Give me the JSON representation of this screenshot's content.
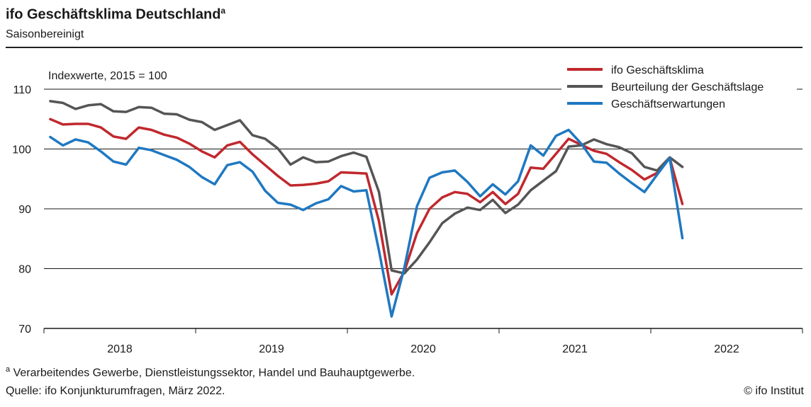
{
  "header": {
    "title": "ifo Geschäftsklima Deutschland",
    "title_superscript": "a",
    "subtitle": "Saisonbereinigt"
  },
  "footer": {
    "footnote_marker": "a",
    "footnote": "Verarbeitendes Gewerbe, Dienstleistungssektor, Handel und Bauhauptgewerbe.",
    "source": "Quelle: ifo Konjunkturumfragen, März 2022.",
    "copyright": "© ifo Institut"
  },
  "chart_data": {
    "type": "line",
    "axis_note": "Indexwerte, 2015 = 100",
    "ylim": [
      70,
      110
    ],
    "yticks": [
      70,
      80,
      90,
      100,
      110
    ],
    "x_start": "2018-01",
    "x_end": "2022-12",
    "xlabels": [
      "2018",
      "2019",
      "2020",
      "2021",
      "2022"
    ],
    "grid": "horizontal",
    "legend_position": "top-right",
    "series": [
      {
        "name": "ifo Geschäftsklima",
        "color": "#c0282d",
        "values": [
          105.0,
          104.1,
          104.2,
          104.2,
          103.6,
          102.1,
          101.7,
          103.6,
          103.2,
          102.4,
          101.9,
          100.9,
          99.6,
          98.6,
          100.6,
          101.2,
          99.1,
          97.3,
          95.5,
          93.9,
          94.0,
          94.2,
          94.6,
          96.1,
          96.0,
          95.9,
          87.9,
          75.7,
          79.5,
          85.9,
          90.0,
          91.9,
          92.8,
          92.5,
          91.1,
          92.8,
          90.8,
          92.5,
          96.9,
          96.7,
          99.2,
          101.7,
          100.7,
          99.7,
          99.2,
          97.8,
          96.5,
          94.9,
          96.0,
          98.5,
          90.8
        ]
      },
      {
        "name": "Beurteilung der Geschäftslage",
        "color": "#555555",
        "values": [
          108.0,
          107.7,
          106.7,
          107.3,
          107.5,
          106.3,
          106.2,
          107.0,
          106.9,
          105.9,
          105.8,
          104.9,
          104.5,
          103.2,
          104.0,
          104.8,
          102.3,
          101.7,
          100.1,
          97.4,
          98.6,
          97.8,
          97.9,
          98.8,
          99.4,
          98.7,
          92.8,
          79.7,
          79.2,
          81.5,
          84.4,
          87.6,
          89.2,
          90.2,
          89.8,
          91.5,
          89.3,
          90.7,
          93.1,
          94.7,
          96.3,
          100.4,
          100.6,
          101.6,
          100.8,
          100.3,
          99.3,
          97.0,
          96.4,
          98.6,
          97.0
        ]
      },
      {
        "name": "Geschäftserwartungen",
        "color": "#1f78c1",
        "values": [
          102.0,
          100.6,
          101.6,
          101.1,
          99.6,
          97.9,
          97.4,
          100.2,
          99.8,
          99.0,
          98.2,
          97.0,
          95.3,
          94.1,
          97.3,
          97.8,
          96.2,
          93.0,
          91.0,
          90.7,
          89.8,
          90.9,
          91.6,
          93.8,
          92.9,
          93.1,
          83.0,
          72.0,
          80.1,
          90.4,
          95.2,
          96.1,
          96.4,
          94.5,
          92.1,
          94.1,
          92.4,
          94.6,
          100.6,
          98.9,
          102.2,
          103.2,
          100.9,
          97.9,
          97.7,
          95.9,
          94.3,
          92.8,
          95.7,
          98.5,
          85.1
        ]
      }
    ]
  }
}
